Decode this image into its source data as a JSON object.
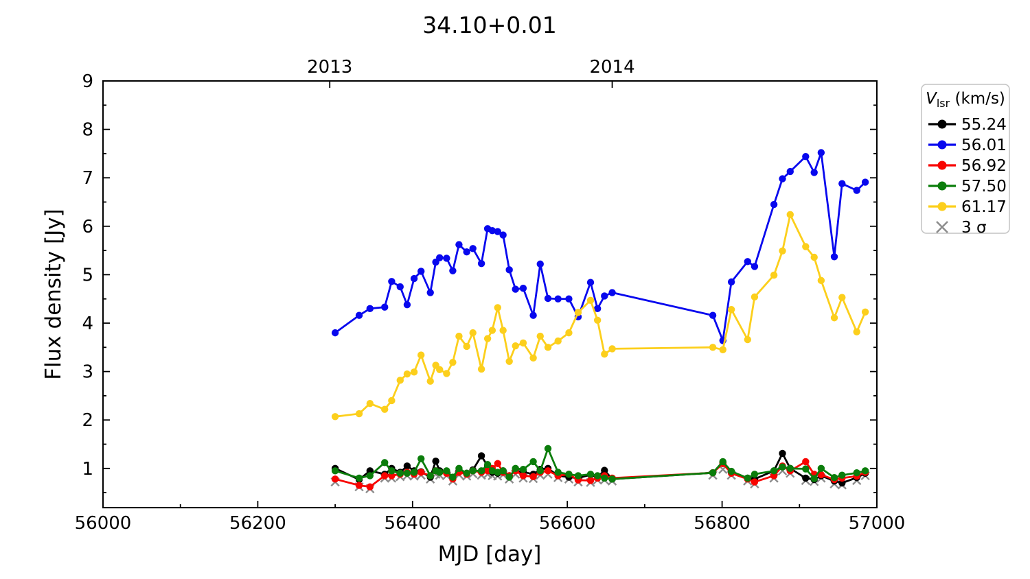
{
  "chart_data": {
    "type": "line",
    "title": "34.10+0.01",
    "xlabel": "MJD [day]",
    "ylabel": "Flux density [Jy]",
    "xlim": [
      56000,
      57000
    ],
    "ylim": [
      0.19,
      9
    ],
    "grid": false,
    "legend_position": "outside-right",
    "x_ticks": {
      "major": [
        56000,
        56200,
        56400,
        56600,
        56800,
        57000
      ],
      "labels": [
        "56000",
        "56200",
        "56400",
        "56600",
        "56800",
        "57000"
      ],
      "minor": [
        56100,
        56300,
        56500,
        56700,
        56900
      ]
    },
    "y_ticks": {
      "major": [
        1,
        2,
        3,
        4,
        5,
        6,
        7,
        8,
        9
      ],
      "labels": [
        "1",
        "2",
        "3",
        "4",
        "5",
        "6",
        "7",
        "8",
        "9"
      ],
      "minor": [
        0.5,
        1.5,
        2.5,
        3.5,
        4.5,
        5.5,
        6.5,
        7.5,
        8.5
      ]
    },
    "top_axis_years": [
      {
        "value": 56293,
        "label": "2013"
      },
      {
        "value": 56658,
        "label": "2014"
      }
    ],
    "legend": {
      "title": "V_lsr (km/s)",
      "title_parts": {
        "symbol": "V",
        "subscript": "lsr",
        "rest": " (km/s)"
      },
      "entries": [
        {
          "label": "55.24",
          "color": "#000000",
          "marker": "circle"
        },
        {
          "label": "56.01",
          "color": "#0808ee",
          "marker": "circle"
        },
        {
          "label": "56.92",
          "color": "#f80400",
          "marker": "circle"
        },
        {
          "label": "57.50",
          "color": "#0b7d0b",
          "marker": "circle"
        },
        {
          "label": "61.17",
          "color": "#fccf1c",
          "marker": "circle"
        },
        {
          "label": "3 σ",
          "color": "#8c8c8c",
          "marker": "x"
        }
      ]
    },
    "x": [
      56300,
      56331,
      56345,
      56364,
      56373,
      56384,
      56393,
      56402,
      56411,
      56423,
      56430,
      56435,
      56444,
      56452,
      56460,
      56470,
      56478,
      56489,
      56497,
      56503,
      56510,
      56517,
      56525,
      56533,
      56543,
      56556,
      56565,
      56575,
      56588,
      56602,
      56614,
      56630,
      56639,
      56648,
      56658,
      56788,
      56801,
      56812,
      56833,
      56842,
      56867,
      56878,
      56888,
      56908,
      56919,
      56928,
      56945,
      56955,
      56974,
      56985
    ],
    "series": [
      {
        "name": "3 σ",
        "color": "#8c8c8c",
        "marker": "x",
        "line": false,
        "values": [
          0.72,
          0.62,
          0.58,
          0.8,
          0.8,
          0.83,
          0.85,
          0.84,
          0.86,
          0.78,
          0.88,
          0.86,
          0.85,
          0.74,
          0.87,
          0.84,
          0.89,
          0.86,
          0.88,
          0.85,
          0.84,
          0.87,
          0.78,
          0.88,
          0.8,
          0.79,
          0.86,
          0.88,
          0.81,
          0.78,
          0.72,
          0.71,
          0.76,
          0.76,
          0.74,
          0.86,
          0.98,
          0.86,
          0.74,
          0.68,
          0.8,
          0.95,
          0.9,
          0.75,
          0.73,
          0.8,
          0.68,
          0.66,
          0.75,
          0.85
        ]
      },
      {
        "name": "55.24",
        "color": "#000000",
        "marker": "circle",
        "line": true,
        "values": [
          1.0,
          0.77,
          0.95,
          0.88,
          1.0,
          0.92,
          1.05,
          0.95,
          0.93,
          0.82,
          1.15,
          0.95,
          0.92,
          0.8,
          0.95,
          0.9,
          0.97,
          1.26,
          1.05,
          0.92,
          0.9,
          0.95,
          0.85,
          0.95,
          0.93,
          0.88,
          0.98,
          1.0,
          0.85,
          0.82,
          0.8,
          0.87,
          0.82,
          0.96,
          0.78,
          0.91,
          1.12,
          0.92,
          0.8,
          0.78,
          0.95,
          1.31,
          1.0,
          0.8,
          0.77,
          0.85,
          0.74,
          0.7,
          0.81,
          0.9
        ]
      },
      {
        "name": "56.01",
        "color": "#0808ee",
        "marker": "circle",
        "line": true,
        "values": [
          3.8,
          4.16,
          4.3,
          4.33,
          4.86,
          4.75,
          4.38,
          4.92,
          5.07,
          4.63,
          5.26,
          5.35,
          5.34,
          5.08,
          5.62,
          5.47,
          5.54,
          5.23,
          5.95,
          5.91,
          5.89,
          5.82,
          5.1,
          4.7,
          4.72,
          4.16,
          5.22,
          4.51,
          4.5,
          4.5,
          4.13,
          4.84,
          4.3,
          4.56,
          4.63,
          4.16,
          3.64,
          4.85,
          5.27,
          5.17,
          6.45,
          6.98,
          7.13,
          7.44,
          7.11,
          7.52,
          5.37,
          6.88,
          6.74,
          6.91
        ]
      },
      {
        "name": "56.92",
        "color": "#f80400",
        "marker": "circle",
        "line": true,
        "values": [
          0.78,
          0.65,
          0.62,
          0.85,
          0.85,
          0.88,
          0.92,
          0.88,
          0.92,
          0.85,
          0.95,
          0.92,
          0.9,
          0.78,
          0.92,
          0.88,
          0.95,
          0.92,
          0.95,
          1.0,
          1.1,
          0.92,
          0.85,
          0.95,
          0.85,
          0.83,
          0.92,
          0.95,
          0.85,
          0.88,
          0.76,
          0.75,
          0.8,
          0.85,
          0.8,
          0.91,
          1.1,
          0.9,
          0.78,
          0.72,
          0.85,
          1.05,
          0.95,
          1.14,
          0.88,
          0.87,
          0.77,
          0.8,
          0.84,
          0.92
        ]
      },
      {
        "name": "57.50",
        "color": "#0b7d0b",
        "marker": "circle",
        "line": true,
        "values": [
          0.95,
          0.8,
          0.85,
          1.12,
          0.95,
          0.9,
          0.9,
          0.92,
          1.2,
          0.85,
          0.95,
          0.92,
          0.95,
          0.82,
          1.0,
          0.9,
          0.95,
          0.95,
          1.08,
          0.95,
          0.92,
          0.95,
          0.82,
          1.0,
          0.98,
          1.14,
          0.95,
          1.41,
          0.92,
          0.88,
          0.85,
          0.88,
          0.85,
          0.8,
          0.78,
          0.91,
          1.14,
          0.94,
          0.8,
          0.88,
          0.95,
          1.03,
          1.0,
          0.99,
          0.79,
          1.0,
          0.81,
          0.86,
          0.91,
          0.95
        ]
      },
      {
        "name": "61.17",
        "color": "#fccf1c",
        "marker": "circle",
        "line": true,
        "values": [
          2.07,
          2.13,
          2.34,
          2.22,
          2.4,
          2.82,
          2.95,
          2.99,
          3.34,
          2.8,
          3.13,
          3.04,
          2.96,
          3.19,
          3.73,
          3.52,
          3.8,
          3.05,
          3.68,
          3.85,
          4.32,
          3.85,
          3.21,
          3.53,
          3.59,
          3.28,
          3.73,
          3.5,
          3.63,
          3.8,
          4.22,
          4.47,
          4.06,
          3.36,
          3.47,
          3.5,
          3.45,
          4.28,
          3.66,
          4.54,
          4.99,
          5.49,
          6.24,
          5.58,
          5.36,
          4.88,
          4.11,
          4.53,
          3.82,
          4.23
        ]
      }
    ]
  }
}
